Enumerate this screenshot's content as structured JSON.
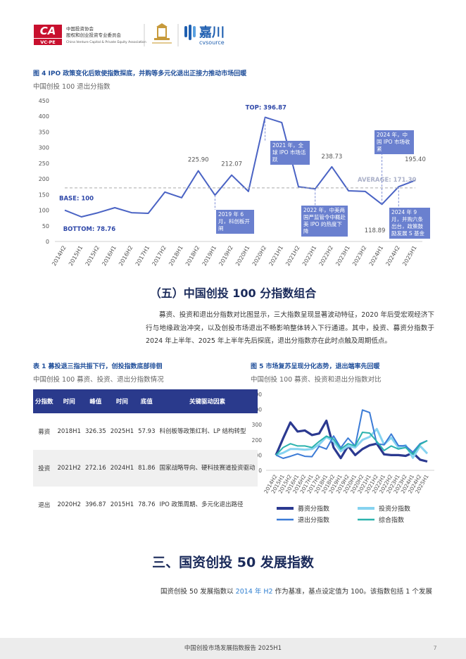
{
  "header": {
    "logo": "CA",
    "logo_sub": "VC·PE",
    "org_cn": "中国投资协会",
    "org_cn2": "股权和创业投资专业委员会",
    "org_en": "China Venture Capital & Private Equity Association",
    "brand": "嘉川",
    "brand_en": "cvsource"
  },
  "chart_data": [
    {
      "type": "line",
      "title": "图 4  IPO 政策变化后致使指数探底，并购等多元化退出正接力推动市场回暖",
      "subtitle": "中国创投 100 退出分指数",
      "categories": [
        "2014H2",
        "2015H1",
        "2015H2",
        "2016H1",
        "2016H2",
        "2017H1",
        "2017H2",
        "2018H1",
        "2018H2",
        "2019H1",
        "2019H2",
        "2020H1",
        "2020H2",
        "2021H1",
        "2021H2",
        "2022H1",
        "2022H2",
        "2023H1",
        "2023H2",
        "2024H1",
        "2024H2",
        "2025H1"
      ],
      "values": [
        100,
        78.76,
        92,
        108,
        92,
        90,
        158,
        140,
        225.9,
        148,
        212.07,
        160,
        396.87,
        380,
        175,
        168,
        238.73,
        162,
        160,
        118.89,
        175,
        195.4
      ],
      "value_labels": [
        "BASE: 100",
        "BOTTOM: 78.76",
        null,
        null,
        null,
        null,
        null,
        null,
        "225.90",
        null,
        "212.07",
        null,
        "TOP: 396.87",
        null,
        null,
        null,
        "238.73",
        null,
        null,
        "118.89",
        null,
        "195.40"
      ],
      "color": "#4a63c4",
      "average": 171.3,
      "average_label": "AVERAGE: 171.30",
      "annotations": [
        "2019 年 6 月，科创板开闸",
        "2021 年，全球 IPO 市场活跃",
        "2022 年，中美两国严监管令中概赴美 IPO 的热度下降",
        "2024 年，中国 IPO 市场收紧",
        "2024 年 9 月，并购六条出台，政策鼓励发展 S 基金"
      ],
      "ylim": [
        0,
        450
      ],
      "yticks": [
        0,
        50,
        100,
        150,
        200,
        250,
        300,
        350,
        400,
        450
      ]
    },
    {
      "type": "line",
      "title": "图 5  市场复苏呈现分化态势，退出端率先回暖",
      "subtitle": "中国创投 100 募资、投资和退出分指数对比",
      "categories": [
        "2014H2",
        "2015H1",
        "2015H2",
        "2016H1",
        "2016H2",
        "2017H1",
        "2017H2",
        "2018H1",
        "2018H2",
        "2019H1",
        "2019H2",
        "2020H1",
        "2020H2",
        "2021H1",
        "2021H2",
        "2022H1",
        "2022H2",
        "2023H1",
        "2023H2",
        "2024H1",
        "2024H2",
        "2025H1"
      ],
      "series": [
        {
          "name": "募资分指数",
          "color": "#2b3990",
          "values": [
            100,
            210,
            315,
            255,
            262,
            232,
            242,
            326.35,
            150,
            80,
            160,
            100,
            140,
            165,
            175,
            105,
            100,
            100,
            95,
            115,
            70,
            57.93
          ]
        },
        {
          "name": "投资分指数",
          "color": "#86d3f0",
          "values": [
            100,
            115,
            140,
            140,
            135,
            140,
            170,
            220,
            190,
            125,
            160,
            150,
            200,
            220,
            272.16,
            170,
            215,
            150,
            165,
            81.86,
            160,
            110
          ]
        },
        {
          "name": "退出分指数",
          "color": "#3b7bd6",
          "values": [
            100,
            78.76,
            92,
            108,
            92,
            90,
            158,
            140,
            225.9,
            148,
            212.07,
            160,
            396.87,
            380,
            175,
            168,
            238.73,
            162,
            160,
            118.89,
            175,
            195.4
          ]
        },
        {
          "name": "综合指数",
          "color": "#2bb3ad",
          "values": [
            100,
            150,
            175,
            160,
            160,
            150,
            190,
            225,
            205,
            140,
            175,
            160,
            250,
            245,
            190,
            130,
            160,
            140,
            150,
            105,
            170,
            195
          ]
        }
      ],
      "ylim": [
        0,
        500
      ],
      "yticks": [
        0,
        100,
        200,
        300,
        400,
        500
      ]
    }
  ],
  "section5": {
    "heading": "（五）中国创投 100 分指数组合",
    "paragraph": "募资、投资和退出分指数对比图显示，三大指数呈现显著波动特征，2020 年后受宏观经济下行与地缘政治冲突，以及创投市场退出不畅影响整体转入下行通道。其中，投资、募资分指数于 2024 年上半年、2025 年上半年先后探底，退出分指数亦在此时点触及周期低点。"
  },
  "table": {
    "title": "表 1  募投退三指共振下行，创投指数底部徘徊",
    "subtitle": "中国创投 100 募资、投资、退出分指数情况",
    "header": [
      "分指数",
      "时间",
      "峰值",
      "时间",
      "底值",
      "关键驱动因素"
    ],
    "rows": [
      [
        "募资",
        "2018H1",
        "326.35",
        "2025H1",
        "57.93",
        "科创板等政策红利、LP 结构转型"
      ],
      [
        "投资",
        "2021H2",
        "272.16",
        "2024H1",
        "81.86",
        "国家战略导向、硬科技赛道投资驱动"
      ],
      [
        "退出",
        "2020H2",
        "396.87",
        "2015H1",
        "78.76",
        "IPO 政策周期、多元化退出路径"
      ]
    ]
  },
  "section3": {
    "heading": "三、国资创投 50 发展指数",
    "paragraph": [
      "国资创投 50 发展指数以 ",
      "2014 年 H2",
      " 作为基准，基点设定值为 100。该指数包括 1 个发展"
    ]
  },
  "footer": {
    "title": "中国创投市场发展指数报告  2025H1",
    "page": "7"
  }
}
